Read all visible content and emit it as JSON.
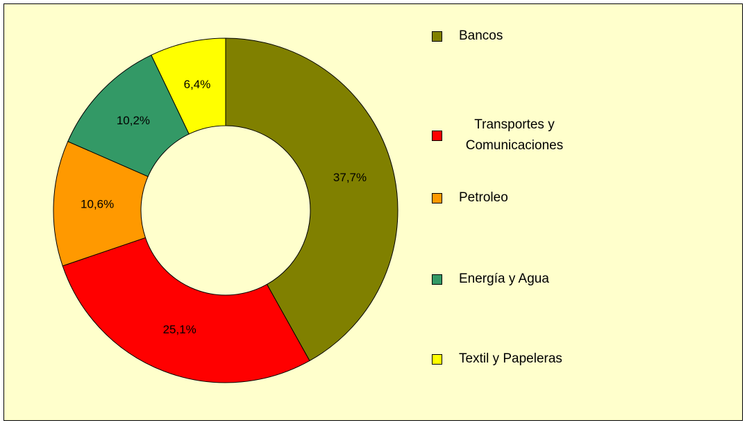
{
  "chart_data": {
    "type": "donut",
    "categories": [
      "Bancos",
      "Transportes y Comunicaciones",
      "Petroleo",
      "Energía y Agua",
      "Textil y Papeleras"
    ],
    "values": [
      37.7,
      25.1,
      10.6,
      10.2,
      6.4
    ],
    "value_labels": [
      "37,7%",
      "25,1%",
      "10,6%",
      "10,2%",
      "6,4%"
    ],
    "colors": [
      "#808000",
      "#ff0000",
      "#ff9900",
      "#339966",
      "#ffff00"
    ],
    "legend": "right"
  }
}
